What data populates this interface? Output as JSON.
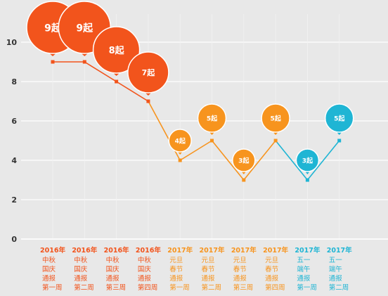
{
  "chart_data": {
    "type": "line",
    "title": "",
    "xlabel": "",
    "ylabel": "",
    "ylim": [
      0,
      10
    ],
    "yticks": [
      "0",
      "2",
      "4",
      "6",
      "8",
      "10"
    ],
    "grid": true,
    "categories": [
      {
        "year": "2016年",
        "lines": [
          "中秋",
          "国庆",
          "通报",
          "第一周"
        ]
      },
      {
        "year": "2016年",
        "lines": [
          "中秋",
          "国庆",
          "通报",
          "第二周"
        ]
      },
      {
        "year": "2016年",
        "lines": [
          "中秋",
          "国庆",
          "通报",
          "第三周"
        ]
      },
      {
        "year": "2016年",
        "lines": [
          "中秋",
          "国庆",
          "通报",
          "第四周"
        ]
      },
      {
        "year": "2017年",
        "lines": [
          "元旦",
          "春节",
          "通报",
          "第一周"
        ]
      },
      {
        "year": "2017年",
        "lines": [
          "元旦",
          "春节",
          "通报",
          "第二周"
        ]
      },
      {
        "year": "2017年",
        "lines": [
          "元旦",
          "春节",
          "通报",
          "第三周"
        ]
      },
      {
        "year": "2017年",
        "lines": [
          "元旦",
          "春节",
          "通报",
          "第四周"
        ]
      },
      {
        "year": "2017年",
        "lines": [
          "五一",
          "端午",
          "通报",
          "第一周"
        ]
      },
      {
        "year": "2017年",
        "lines": [
          "五一",
          "端午",
          "通报",
          "第二周"
        ]
      }
    ],
    "values": [
      9,
      9,
      8,
      7,
      4,
      5,
      3,
      5,
      3,
      5
    ],
    "data_labels": [
      "9起",
      "9起",
      "8起",
      "7起",
      "4起",
      "5起",
      "3起",
      "5起",
      "3起",
      "5起"
    ],
    "group_colors": {
      "2016_mid_autumn": "#f2541c",
      "2017_new_year": "#f7941e",
      "2017_may_day": "#1fb5d4"
    },
    "point_groups": [
      "2016_mid_autumn",
      "2016_mid_autumn",
      "2016_mid_autumn",
      "2016_mid_autumn",
      "2017_new_year",
      "2017_new_year",
      "2017_new_year",
      "2017_new_year",
      "2017_may_day",
      "2017_may_day"
    ]
  }
}
